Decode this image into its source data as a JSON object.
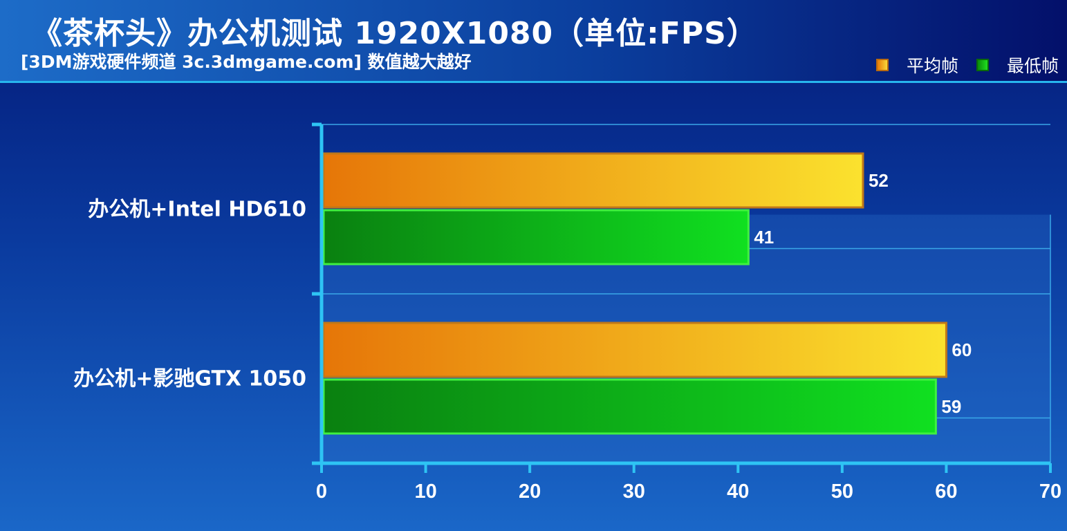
{
  "header": {
    "title": "《茶杯头》办公机测试 1920X1080（单位:FPS）",
    "subtitle": "[3DM游戏硬件频道 3c.3dmgame.com] 数值越大越好"
  },
  "legend": [
    {
      "label": "平均帧",
      "color": "#f0a020"
    },
    {
      "label": "最低帧",
      "color": "#18c018"
    }
  ],
  "colors": {
    "avg_from": "#e67608",
    "avg_to": "#fbe22e",
    "avg_border": "#c07818",
    "min_from": "#0a8010",
    "min_to": "#10e020",
    "min_border": "#40f040",
    "axis": "#2ec4f4",
    "grid": "#3aa8e8"
  },
  "chart_data": {
    "type": "bar",
    "orientation": "horizontal",
    "title": "《茶杯头》办公机测试 1920X1080（单位:FPS）",
    "subtitle": "[3DM游戏硬件频道 3c.3dmgame.com] 数值越大越好",
    "categories": [
      "办公机+Intel HD610",
      "办公机+影驰GTX 1050"
    ],
    "series": [
      {
        "name": "平均帧",
        "values": [
          52,
          60
        ]
      },
      {
        "name": "最低帧",
        "values": [
          41,
          59
        ]
      }
    ],
    "xlim": [
      0,
      70
    ],
    "xticks": [
      "0",
      "10",
      "20",
      "30",
      "40",
      "50",
      "60",
      "70"
    ],
    "grid": true,
    "legend_position": "top-right"
  }
}
